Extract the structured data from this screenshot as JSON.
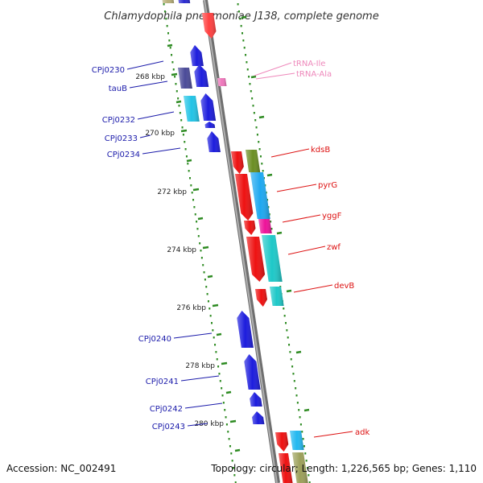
{
  "title": "Chlamydophila pneumoniae J138, complete genome",
  "footer": {
    "accession": "Accession: NC_002491",
    "stats": "Topology: circular; Length: 1,226,565 bp; Genes: 1,110"
  },
  "colors": {
    "backbone": "#8c8c8c",
    "scale_dots": "#2e8b22",
    "left_label": "#1a1aaa",
    "right_label": "#dd1111",
    "trna_label": "#ee88bb"
  },
  "scale_marks": [
    "268 kbp",
    "270 kbp",
    "272 kbp",
    "274 kbp",
    "276 kbp",
    "278 kbp",
    "280 kbp"
  ],
  "left_labels": [
    "CPj0230",
    "tauB",
    "CPj0232",
    "CPj0233",
    "CPj0234",
    "CPj0240",
    "CPj0241",
    "CPj0242",
    "CPj0243"
  ],
  "right_labels": [
    "kdsB",
    "pyrG",
    "yggF",
    "zwf",
    "devB",
    "adk"
  ],
  "trna_labels": [
    "tRNA-Ile",
    "tRNA-Ala"
  ]
}
